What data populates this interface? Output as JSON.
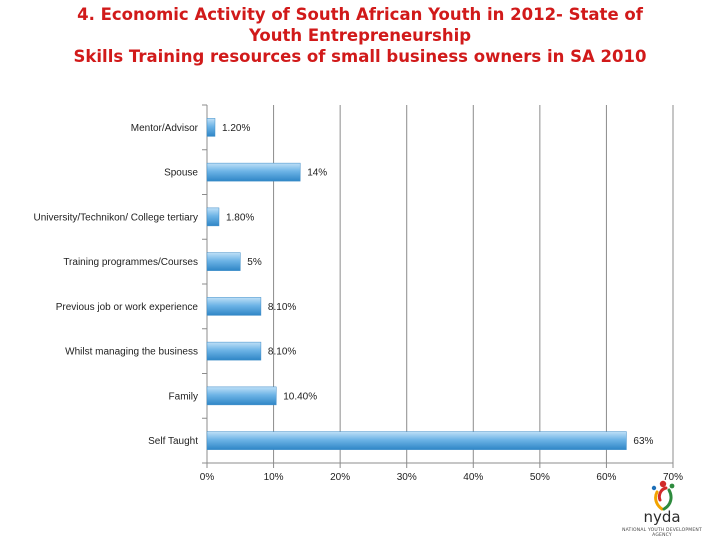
{
  "title_lines": [
    "4. Economic Activity of South African Youth in 2012- State of",
    "Youth Entrepreneurship",
    "Skills Training resources of small business owners in SA 2010"
  ],
  "logo": {
    "text": "nyda",
    "subtitle": "NATIONAL YOUTH DEVELOPMENT AGENCY"
  },
  "chart_data": {
    "type": "bar",
    "orientation": "horizontal",
    "categories": [
      "Mentor/Advisor",
      "Spouse",
      "University/Technikon/ College tertiary",
      "Training programmes/Courses",
      "Previous job or work experience",
      "Whilst managing the business",
      "Family",
      "Self Taught"
    ],
    "values": [
      1.2,
      14,
      1.8,
      5,
      8.1,
      8.1,
      10.4,
      63
    ],
    "data_labels": [
      "1.20%",
      "14%",
      "1.80%",
      "5%",
      "8.10%",
      "8.10%",
      "10.40%",
      "63%"
    ],
    "xlim": [
      0,
      70
    ],
    "x_ticks": [
      "0%",
      "10%",
      "20%",
      "30%",
      "40%",
      "50%",
      "60%",
      "70%"
    ],
    "grid": true,
    "bar_color": "#5aa7dd"
  }
}
